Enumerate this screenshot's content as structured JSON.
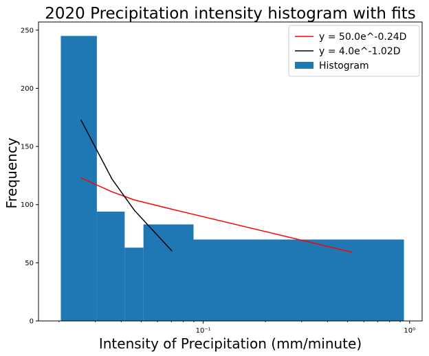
{
  "chart_data": {
    "type": "bar",
    "title": "2020 Precipitation intensity histogram with fits",
    "xlabel": "Intensity of Precipitation (mm/minute)",
    "ylabel": "Frequency",
    "x_scale": "log",
    "xlim": [
      0.0159,
      1.15
    ],
    "ylim": [
      0,
      257
    ],
    "x_ticks": [
      {
        "value": 0.1,
        "label": "10⁻¹"
      },
      {
        "value": 1,
        "label": "10⁰"
      }
    ],
    "y_ticks": [
      0,
      50,
      100,
      150,
      200,
      250
    ],
    "histogram": {
      "name": "Histogram",
      "color": "#1f77b4",
      "bins": [
        {
          "x0": 0.0204,
          "x1": 0.0305,
          "value": 245
        },
        {
          "x0": 0.0305,
          "x1": 0.0416,
          "value": 94
        },
        {
          "x0": 0.0416,
          "x1": 0.0513,
          "value": 63
        },
        {
          "x0": 0.0513,
          "x1": 0.0897,
          "value": 83
        },
        {
          "x0": 0.0897,
          "x1": 0.939,
          "value": 70
        }
      ]
    },
    "series": [
      {
        "name": "y = 50.0e^-0.24D",
        "color": "#ff0000",
        "x": [
          0.0255,
          0.0361,
          0.0464,
          0.0706,
          0.527
        ],
        "y": [
          123,
          111,
          104,
          96,
          59
        ]
      },
      {
        "name": "y = 4.0e^-1.02D",
        "color": "#000000",
        "x": [
          0.0255,
          0.0361,
          0.0464,
          0.0706
        ],
        "y": [
          173,
          122,
          95,
          60
        ]
      }
    ],
    "legend_position": "top-right",
    "grid": false
  }
}
